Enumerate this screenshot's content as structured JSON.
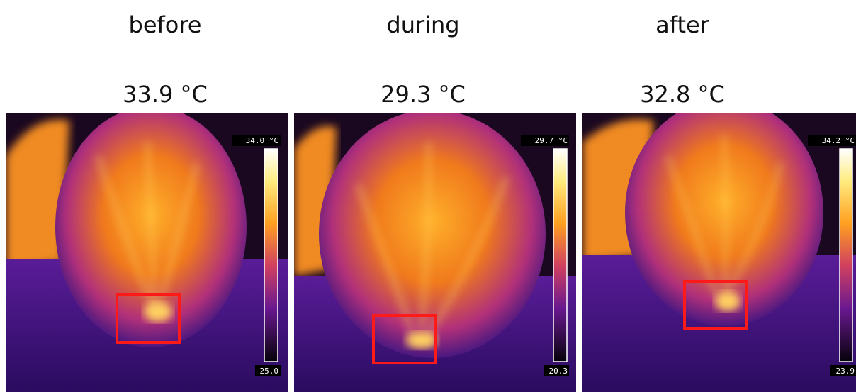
{
  "panels": [
    {
      "label": "before",
      "temperature": "33.9 °C",
      "scale_max": "34.0 °C",
      "scale_min": "25.0"
    },
    {
      "label": "during",
      "temperature": "29.3 °C",
      "scale_max": "29.7 °C",
      "scale_min": "20.3"
    },
    {
      "label": "after",
      "temperature": "32.8 °C",
      "scale_max": "34.2 °C",
      "scale_min": "23.9"
    }
  ]
}
